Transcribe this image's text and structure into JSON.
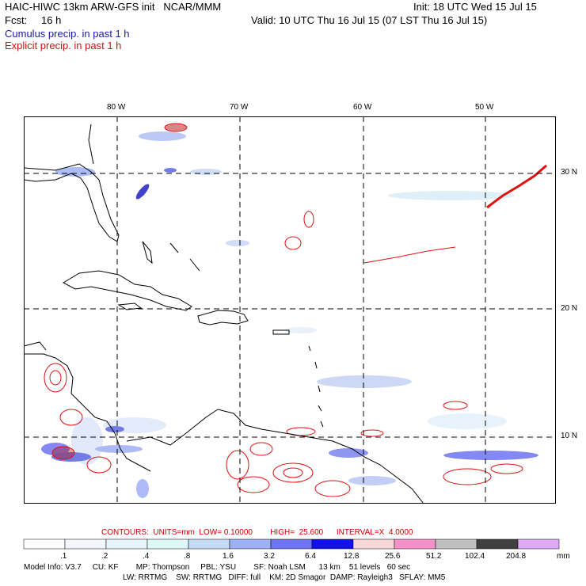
{
  "header": {
    "model_title": "HAIC-HIWC 13km ARW-GFS init   NCAR/MMM",
    "init": "Init: 18 UTC Wed 15 Jul 15",
    "fcst_label": "Fcst:",
    "fcst_value": "16 h",
    "valid": "Valid: 10 UTC Thu 16 Jul 15 (07 LST Thu 16 Jul 15)",
    "legend_cumulus": "Cumulus precip. in past 1 h",
    "legend_explicit": "Explicit precip. in past 1 h",
    "cumulus_color": "#1a1aa8",
    "explicit_color": "#d01010"
  },
  "map": {
    "lon_labels": [
      "80 W",
      "70 W",
      "60 W",
      "50 W"
    ],
    "lat_labels": [
      "30 N",
      "20 N",
      "10 N"
    ],
    "coast_color": "#000000",
    "grid_color": "#000000"
  },
  "contours": {
    "text": "CONTOURS:  UNITS=mm  LOW= 0.10000        HIGH=  25.600      INTERVAL=X  4.0000"
  },
  "colorbar": {
    "labels": [
      ".1",
      ".2",
      ".4",
      ".8",
      "1.6",
      "3.2",
      "6.4",
      "12.8",
      "25.6",
      "51.2",
      "102.4",
      "204.8"
    ],
    "units": "mm",
    "colors": [
      "#ffffff",
      "#f3f6ff",
      "#e6f5fa",
      "#def7f7",
      "#c5daf7",
      "#9eb0f5",
      "#6f74f0",
      "#1010f0",
      "#fad7d7",
      "#f590c8",
      "#bfbfbf",
      "#404040",
      "#e0a8f5"
    ]
  },
  "model_info": {
    "line1": "Model Info: V3.7     CU: KF        MP: Thompson     PBL: YSU        SF: Noah LSM      13 km    51 levels   60 sec",
    "line2": "LW: RRTMG    SW: RRTMG   DIFF: full    KM: 2D Smagor  DAMP: Rayleigh3   SFLAY: MM5"
  }
}
